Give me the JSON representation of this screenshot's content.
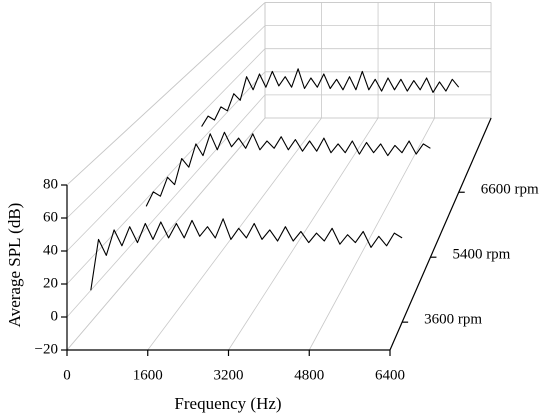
{
  "chart_data": {
    "type": "waterfall",
    "xlabel": "Frequency (Hz)",
    "ylabel": "Average SPL (dB)",
    "x": [
      0,
      160,
      320,
      480,
      640,
      800,
      960,
      1120,
      1280,
      1440,
      1600,
      1760,
      1920,
      2080,
      2240,
      2400,
      2560,
      2720,
      2880,
      3040,
      3200,
      3360,
      3520,
      3680,
      3840,
      4000,
      4160,
      4320,
      4480,
      4640,
      4800,
      4960,
      5120,
      5280,
      5440,
      5600,
      5760,
      5920,
      6080,
      6240,
      6400
    ],
    "xlim": [
      0,
      6400
    ],
    "xticks": [
      0,
      1600,
      3200,
      4800,
      6400
    ],
    "ylim": [
      -20,
      80
    ],
    "yticks": [
      {
        "value": -20,
        "label": "−20"
      },
      0,
      20,
      40,
      60,
      80
    ],
    "grid": true,
    "series": [
      {
        "name": "3600 rpm",
        "color": "#000000",
        "values": [
          0,
          32,
          22,
          38,
          28,
          40,
          30,
          42,
          32,
          43,
          33,
          42,
          33,
          44,
          34,
          40,
          33,
          45,
          32,
          39,
          33,
          42,
          32,
          38,
          31,
          40,
          31,
          37,
          30,
          36,
          31,
          39,
          29,
          35,
          30,
          37,
          27,
          34,
          28,
          36,
          33
        ]
      },
      {
        "name": "5400 rpm",
        "color": "#000000",
        "values": [
          15,
          25,
          22,
          35,
          30,
          48,
          42,
          58,
          50,
          65,
          54,
          66,
          56,
          62,
          55,
          65,
          54,
          60,
          55,
          63,
          54,
          61,
          53,
          60,
          53,
          62,
          52,
          58,
          52,
          60,
          51,
          59,
          52,
          58,
          50,
          57,
          52,
          60,
          51,
          58,
          55
        ]
      },
      {
        "name": "6600 rpm",
        "color": "#000000",
        "values": [
          30,
          38,
          35,
          45,
          42,
          55,
          50,
          68,
          58,
          70,
          60,
          72,
          61,
          68,
          60,
          74,
          59,
          67,
          60,
          70,
          59,
          66,
          58,
          68,
          58,
          72,
          58,
          66,
          57,
          67,
          58,
          66,
          57,
          65,
          58,
          67,
          56,
          64,
          57,
          66,
          60
        ]
      }
    ]
  }
}
